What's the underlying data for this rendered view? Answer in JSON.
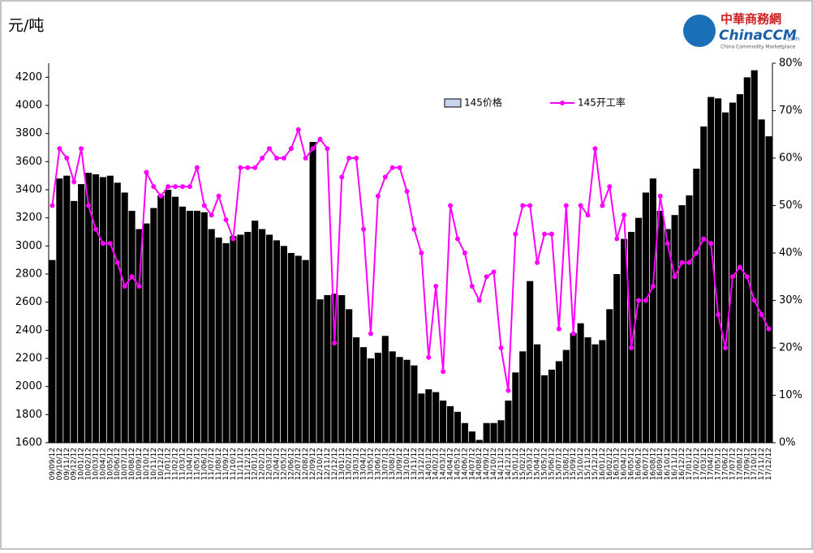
{
  "chart_data": {
    "type": "bar-line",
    "y_unit_label": "元/吨",
    "logo": {
      "cn": "中華商務網",
      "en": "ChinaCCM",
      "domain": ".com",
      "tagline": "China Commodity Marketplace"
    },
    "categories": [
      "09/09/12",
      "09/10/12",
      "09/11/12",
      "09/12/12",
      "10/01/12",
      "10/02/12",
      "10/03/12",
      "10/04/12",
      "10/05/12",
      "10/06/12",
      "10/07/12",
      "10/08/12",
      "10/09/12",
      "10/10/12",
      "10/11/12",
      "10/12/12",
      "11/01/12",
      "11/02/12",
      "11/03/12",
      "11/04/12",
      "11/05/12",
      "11/06/12",
      "11/07/12",
      "11/08/12",
      "11/09/12",
      "11/10/12",
      "11/11/12",
      "11/12/12",
      "12/01/12",
      "12/02/12",
      "12/03/12",
      "12/04/12",
      "12/05/12",
      "12/06/12",
      "12/07/12",
      "12/08/12",
      "12/09/12",
      "12/10/12",
      "12/11/12",
      "12/12/12",
      "13/01/12",
      "13/02/12",
      "13/03/12",
      "13/04/12",
      "13/05/12",
      "13/06/12",
      "13/07/12",
      "13/08/12",
      "13/09/12",
      "13/10/12",
      "13/11/12",
      "13/12/12",
      "14/01/12",
      "14/02/12",
      "14/03/12",
      "14/04/12",
      "14/05/12",
      "14/06/12",
      "14/07/12",
      "14/08/12",
      "14/09/12",
      "14/10/12",
      "14/11/12",
      "14/12/12",
      "15/01/12",
      "15/02/12",
      "15/03/12",
      "15/04/12",
      "15/05/12",
      "15/06/12",
      "15/07/12",
      "15/08/12",
      "15/09/12",
      "15/10/12",
      "15/11/12",
      "15/12/12",
      "16/01/12",
      "16/02/12",
      "16/03/12",
      "16/04/12",
      "16/05/12",
      "16/06/12",
      "16/07/12",
      "16/08/12",
      "16/09/12",
      "16/10/12",
      "16/11/12",
      "16/12/12",
      "17/01/12",
      "17/02/12",
      "17/03/12",
      "17/04/12",
      "17/05/12",
      "17/06/12",
      "17/07/12",
      "17/08/12",
      "17/09/12",
      "17/10/12",
      "17/11/12",
      "17/12/12"
    ],
    "series": [
      {
        "name": "145价格",
        "kind": "bar",
        "color": "#000000",
        "legend_color": "#c6d4ee",
        "values": [
          2900,
          3480,
          3500,
          3320,
          3440,
          3520,
          3510,
          3490,
          3500,
          3450,
          3380,
          3250,
          3120,
          3160,
          3270,
          3360,
          3400,
          3350,
          3280,
          3250,
          3250,
          3240,
          3120,
          3060,
          3020,
          3070,
          3080,
          3100,
          3180,
          3120,
          3080,
          3040,
          3000,
          2950,
          2930,
          2900,
          3740,
          2620,
          2650,
          2660,
          2650,
          2550,
          2350,
          2280,
          2200,
          2240,
          2360,
          2250,
          2210,
          2190,
          2150,
          1950,
          1980,
          1960,
          1900,
          1860,
          1820,
          1740,
          1680,
          1620,
          1740,
          1740,
          1760,
          1900,
          2100,
          2250,
          2750,
          2300,
          2080,
          2120,
          2180,
          2260,
          2380,
          2450,
          2350,
          2300,
          2330,
          2550,
          2800,
          3050,
          3100,
          3200,
          3380,
          3480,
          3250,
          3120,
          3220,
          3290,
          3360,
          3550,
          3850,
          4060,
          4050,
          3950,
          4020,
          4080,
          4200,
          4250,
          3900,
          3780
        ]
      },
      {
        "name": "145开工率",
        "kind": "line",
        "axis": "y2",
        "color": "#ff00ff",
        "values": [
          50,
          62,
          60,
          55,
          62,
          50,
          45,
          42,
          42,
          38,
          33,
          35,
          33,
          57,
          54,
          52,
          54,
          54,
          54,
          54,
          58,
          50,
          48,
          52,
          47,
          43,
          58,
          58,
          58,
          60,
          62,
          60,
          60,
          62,
          66,
          60,
          62,
          64,
          62,
          21,
          56,
          60,
          60,
          45,
          23,
          52,
          56,
          58,
          58,
          53,
          45,
          40,
          18,
          33,
          15,
          50,
          43,
          40,
          33,
          30,
          35,
          36,
          20,
          11,
          44,
          50,
          50,
          38,
          44,
          44,
          24,
          50,
          23,
          50,
          48,
          62,
          50,
          54,
          43,
          48,
          20,
          30,
          30,
          33,
          52,
          42,
          35,
          38,
          38,
          40,
          43,
          42,
          27,
          20,
          35,
          37,
          35,
          30,
          27,
          24
        ]
      }
    ],
    "ylim": [
      1600,
      4300
    ],
    "yticks": [
      1600,
      1800,
      2000,
      2200,
      2400,
      2600,
      2800,
      3000,
      3200,
      3400,
      3600,
      3800,
      4000,
      4200
    ],
    "y2lim": [
      0,
      80
    ],
    "y2ticks": [
      {
        "value": 0,
        "label": "0%"
      },
      {
        "value": 10,
        "label": "10%"
      },
      {
        "value": 20,
        "label": "20%"
      },
      {
        "value": 30,
        "label": "30%"
      },
      {
        "value": 40,
        "label": "40%"
      },
      {
        "value": 50,
        "label": "50%"
      },
      {
        "value": 60,
        "label": "60%"
      },
      {
        "value": 70,
        "label": "70%"
      },
      {
        "value": 80,
        "label": "80%"
      }
    ],
    "legend": "top-center"
  }
}
